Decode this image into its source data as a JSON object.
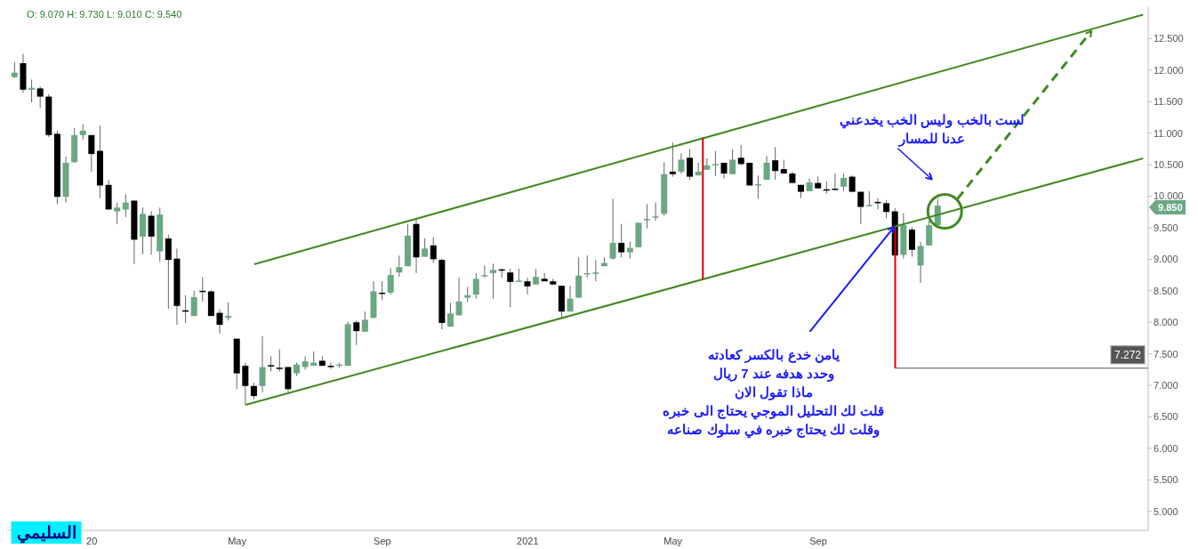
{
  "chart_data": {
    "type": "candlestick",
    "subtitle": "O: 9.070 H: 9.730 L: 9.010 C: 9.540",
    "categories": [
      null,
      null,
      null,
      null,
      null,
      null,
      null,
      null,
      null,
      "20",
      null,
      null,
      null,
      null,
      null,
      null,
      null,
      null,
      null,
      null,
      null,
      null,
      null,
      null,
      null,
      null,
      "May",
      null,
      null,
      null,
      null,
      null,
      null,
      null,
      null,
      null,
      null,
      null,
      null,
      null,
      null,
      null,
      null,
      "Sep",
      null,
      null,
      null,
      null,
      null,
      null,
      null,
      null,
      null,
      null,
      null,
      null,
      null,
      null,
      null,
      null,
      "2021",
      null,
      null,
      null,
      null,
      null,
      null,
      null,
      null,
      null,
      null,
      null,
      null,
      null,
      null,
      null,
      null,
      "May",
      null,
      null,
      null,
      null,
      null,
      null,
      null,
      null,
      null,
      null,
      null,
      null,
      null,
      null,
      null,
      null,
      "Sep",
      null,
      null,
      null,
      null,
      null,
      null,
      null,
      null,
      null,
      null,
      null,
      null,
      null,
      null,
      null,
      null,
      null,
      null,
      null,
      null,
      null,
      null,
      null,
      null,
      null,
      null,
      null,
      null,
      null,
      null,
      null,
      null,
      null,
      null,
      null,
      null,
      null,
      null
    ],
    "ohlc": [
      [
        11.89,
        12.13,
        11.875,
        11.96
      ],
      [
        12.11,
        12.26,
        11.64,
        11.69
      ],
      [
        11.69,
        11.85,
        11.49,
        11.72
      ],
      [
        11.71,
        11.74,
        11.4,
        11.58
      ],
      [
        11.58,
        11.62,
        10.94,
        10.97
      ],
      [
        10.99,
        11.04,
        9.875,
        9.99
      ],
      [
        9.99,
        10.625,
        9.9,
        10.53
      ],
      [
        10.54,
        11.08,
        10.53,
        10.97
      ],
      [
        10.97,
        11.14,
        10.9,
        11.04
      ],
      [
        10.97,
        10.97,
        10.39,
        10.67
      ],
      [
        10.72,
        11.125,
        9.97,
        10.17
      ],
      [
        10.18,
        10.26,
        9.78,
        9.79
      ],
      [
        9.76,
        9.9,
        9.56,
        9.82
      ],
      [
        9.79,
        10.03,
        9.67,
        9.9
      ],
      [
        9.93,
        9.93,
        8.92,
        9.31
      ],
      [
        9.36,
        9.82,
        9.08,
        9.72
      ],
      [
        9.69,
        9.76,
        9.07,
        9.36
      ],
      [
        9.125,
        9.82,
        8.96,
        9.71
      ],
      [
        9.33,
        9.39,
        8.21,
        8.99
      ],
      [
        9.01,
        9.17,
        7.96,
        8.26
      ],
      [
        8.19,
        8.43,
        7.99,
        8.18
      ],
      [
        8.1,
        8.5,
        8.1,
        8.4
      ],
      [
        8.5,
        8.72,
        8.33,
        8.49
      ],
      [
        8.49,
        8.51,
        8.1,
        8.1
      ],
      [
        8.15,
        8.21,
        7.82,
        7.96
      ],
      [
        8.07,
        8.32,
        8.03,
        8.1
      ],
      [
        7.74,
        7.74,
        6.94,
        7.19
      ],
      [
        7.31,
        7.36,
        6.69,
        6.99
      ],
      [
        6.99,
        7.04,
        6.78,
        6.83
      ],
      [
        6.99,
        7.78,
        6.89,
        7.29
      ],
      [
        7.32,
        7.46,
        7.22,
        7.31
      ],
      [
        7.28,
        7.57,
        7.22,
        7.27
      ],
      [
        7.29,
        7.29,
        6.9,
        6.94
      ],
      [
        7.19,
        7.36,
        7.15,
        7.33
      ],
      [
        7.29,
        7.46,
        7.25,
        7.38
      ],
      [
        7.31,
        7.54,
        7.31,
        7.36
      ],
      [
        7.39,
        7.46,
        7.31,
        7.31
      ],
      [
        7.31,
        7.36,
        7.26,
        7.3
      ],
      [
        7.31,
        7.36,
        7.28,
        7.33
      ],
      [
        7.31,
        8.01,
        7.31,
        7.97
      ],
      [
        8.0,
        8.03,
        7.64,
        7.86
      ],
      [
        7.85,
        8.17,
        7.85,
        8.04
      ],
      [
        8.07,
        8.65,
        8.07,
        8.49
      ],
      [
        8.47,
        8.65,
        8.35,
        8.45
      ],
      [
        8.47,
        8.86,
        8.44,
        8.75
      ],
      [
        8.79,
        9.06,
        8.72,
        8.875
      ],
      [
        8.89,
        9.56,
        8.89,
        9.375
      ],
      [
        9.56,
        9.64,
        8.78,
        9.03
      ],
      [
        9.04,
        9.33,
        9.04,
        9.17
      ],
      [
        9.22,
        9.35,
        8.94,
        9.0
      ],
      [
        8.99,
        9.01,
        7.89,
        7.99
      ],
      [
        7.93,
        8.31,
        7.93,
        8.14
      ],
      [
        8.11,
        8.71,
        8.11,
        8.33
      ],
      [
        8.39,
        8.56,
        8.32,
        8.43
      ],
      [
        8.44,
        8.78,
        8.375,
        8.69
      ],
      [
        8.73,
        8.9,
        8.71,
        8.75
      ],
      [
        8.78,
        8.93,
        8.375,
        8.83
      ],
      [
        8.84,
        8.85,
        8.71,
        8.82
      ],
      [
        8.79,
        8.85,
        8.24,
        8.64
      ],
      [
        8.64,
        8.85,
        8.64,
        8.66
      ],
      [
        8.65,
        8.71,
        8.44,
        8.57
      ],
      [
        8.6,
        8.85,
        8.6,
        8.72
      ],
      [
        8.69,
        8.78,
        8.65,
        8.65
      ],
      [
        8.65,
        8.69,
        8.6,
        8.6
      ],
      [
        8.58,
        8.58,
        8.07,
        8.17
      ],
      [
        8.17,
        8.58,
        8.17,
        8.375
      ],
      [
        8.39,
        9.03,
        8.39,
        8.74
      ],
      [
        8.77,
        9.06,
        8.71,
        8.78
      ],
      [
        8.77,
        8.99,
        8.65,
        8.79
      ],
      [
        8.89,
        9.03,
        8.89,
        8.94
      ],
      [
        9.01,
        9.96,
        8.99,
        9.26
      ],
      [
        9.26,
        9.56,
        9.03,
        9.11
      ],
      [
        9.11,
        9.28,
        9.01,
        9.18
      ],
      [
        9.19,
        9.58,
        9.19,
        9.58
      ],
      [
        9.63,
        9.875,
        9.49,
        9.64
      ],
      [
        9.67,
        9.9,
        9.61,
        9.68
      ],
      [
        9.72,
        10.54,
        9.69,
        10.35
      ],
      [
        10.39,
        10.85,
        10.31,
        10.35
      ],
      [
        10.39,
        10.68,
        10.36,
        10.58
      ],
      [
        10.61,
        10.75,
        10.26,
        10.31
      ],
      [
        10.33,
        10.53,
        10.33,
        10.39
      ],
      [
        10.42,
        10.6,
        10.42,
        10.49
      ],
      [
        10.5,
        10.72,
        10.32,
        10.51
      ],
      [
        10.53,
        10.53,
        10.28,
        10.36
      ],
      [
        10.35,
        10.74,
        10.35,
        10.58
      ],
      [
        10.61,
        10.81,
        10.49,
        10.51
      ],
      [
        10.53,
        10.53,
        10.17,
        10.17
      ],
      [
        10.18,
        10.33,
        9.96,
        10.19
      ],
      [
        10.26,
        10.64,
        10.26,
        10.53
      ],
      [
        10.57,
        10.78,
        10.26,
        10.4
      ],
      [
        10.43,
        10.58,
        10.36,
        10.36
      ],
      [
        10.36,
        10.39,
        10.21,
        10.21
      ],
      [
        10.18,
        10.18,
        9.97,
        10.07
      ],
      [
        10.08,
        10.28,
        10.08,
        10.22
      ],
      [
        10.21,
        10.31,
        10.12,
        10.125
      ],
      [
        10.11,
        10.24,
        10.04,
        10.1
      ],
      [
        10.12,
        10.36,
        10.11,
        10.11
      ],
      [
        10.15,
        10.36,
        10.08,
        10.29
      ],
      [
        10.31,
        10.33,
        10.07,
        10.07
      ],
      [
        10.07,
        10.07,
        9.56,
        9.83
      ],
      [
        9.85,
        10.08,
        9.85,
        9.86
      ],
      [
        9.91,
        9.97,
        9.79,
        9.9
      ],
      [
        9.89,
        9.94,
        9.65,
        9.75
      ],
      [
        9.76,
        9.81,
        9.06,
        9.06
      ],
      [
        9.07,
        9.73,
        9.01,
        9.54
      ],
      [
        9.47,
        9.51,
        9.04,
        9.15
      ],
      [
        8.9,
        9.28,
        8.625,
        9.21
      ],
      [
        9.22,
        9.61,
        9.22,
        9.54
      ],
      [
        9.54,
        9.96,
        9.54,
        9.85
      ],
      null,
      null,
      null,
      null,
      null,
      null,
      null,
      null,
      null,
      null,
      null,
      null,
      null,
      null,
      null,
      null,
      null,
      null,
      null,
      null,
      null,
      null,
      null,
      null
    ],
    "colors": [
      "#6aa882",
      "#000000",
      "#6aa882",
      "#000000",
      "#000000",
      "#000000",
      "#6aa882",
      "#6aa882",
      "#6aa882",
      "#000000",
      "#000000",
      "#000000",
      "#6aa882",
      "#6aa882",
      "#000000",
      "#6aa882",
      "#000000",
      "#6aa882",
      "#000000",
      "#000000",
      "#000000",
      "#6aa882",
      "#000000",
      "#000000",
      "#000000",
      "#6aa882",
      "#000000",
      "#000000",
      "#000000",
      "#6aa882",
      "#000000",
      "#000000",
      "#000000",
      "#6aa882",
      "#6aa882",
      "#6aa882",
      "#000000",
      "#000000",
      "#6aa882",
      "#6aa882",
      "#000000",
      "#6aa882",
      "#6aa882",
      "#000000",
      "#6aa882",
      "#6aa882",
      "#6aa882",
      "#000000",
      "#6aa882",
      "#000000",
      "#000000",
      "#6aa882",
      "#6aa882",
      "#6aa882",
      "#6aa882",
      "#6aa882",
      "#6aa882",
      "#000000",
      "#000000",
      "#6aa882",
      "#000000",
      "#6aa882",
      "#000000",
      "#000000",
      "#000000",
      "#6aa882",
      "#6aa882",
      "#6aa882",
      "#6aa882",
      "#6aa882",
      "#6aa882",
      "#000000",
      "#6aa882",
      "#6aa882",
      "#6aa882",
      "#6aa882",
      "#6aa882",
      "#000000",
      "#6aa882",
      "#000000",
      "#6aa882",
      "#6aa882",
      "#6aa882",
      "#000000",
      "#6aa882",
      "#000000",
      "#000000",
      "#6aa882",
      "#6aa882",
      "#000000",
      "#000000",
      "#000000",
      "#000000",
      "#6aa882",
      "#000000",
      "#000000",
      "#000000",
      "#6aa882",
      "#000000",
      "#000000",
      "#6aa882",
      "#000000",
      "#000000",
      "#000000",
      "#6aa882",
      "#000000",
      "#6aa882",
      "#6aa882",
      "#6aa882",
      null,
      null,
      null,
      null,
      null,
      null,
      null,
      null,
      null,
      null,
      null,
      null,
      null,
      null,
      null,
      null,
      null,
      null,
      null,
      null,
      null,
      null,
      null,
      null
    ],
    "series": [
      {
        "type": "line",
        "color": "#3f8a1f",
        "values": [
          null,
          null,
          null,
          null,
          null,
          null,
          null,
          null,
          null,
          null,
          null,
          null,
          null,
          null,
          null,
          null,
          null,
          null,
          null,
          null,
          null,
          null,
          null,
          null,
          null,
          null,
          null,
          null,
          8.92,
          null,
          null,
          null,
          null,
          null,
          null,
          null,
          null,
          null,
          null,
          null,
          null,
          null,
          null,
          null,
          null,
          null,
          null,
          null,
          null,
          null,
          null,
          null,
          null,
          null,
          null,
          null,
          null,
          null,
          null,
          null,
          null,
          null,
          null,
          null,
          null,
          null,
          null,
          null,
          null,
          null,
          null,
          null,
          null,
          null,
          null,
          null,
          null,
          null,
          null,
          null,
          null,
          null,
          null,
          null,
          null,
          null,
          null,
          null,
          null,
          null,
          null,
          null,
          null,
          null,
          null,
          null,
          null,
          null,
          null,
          null,
          null,
          null,
          null,
          null,
          null,
          null,
          null,
          null,
          null,
          null,
          null,
          null,
          null,
          null,
          null,
          null,
          null,
          null,
          null,
          null,
          null,
          null,
          null,
          null,
          null,
          null,
          null,
          null,
          null,
          null,
          null,
          null,
          12.88
        ]
      },
      {
        "type": "line",
        "color": "#3f8a1f",
        "values": [
          null,
          null,
          null,
          null,
          null,
          null,
          null,
          null,
          null,
          null,
          null,
          null,
          null,
          null,
          null,
          null,
          null,
          null,
          null,
          null,
          null,
          null,
          null,
          null,
          null,
          null,
          null,
          6.69,
          null,
          null,
          null,
          null,
          null,
          null,
          null,
          null,
          null,
          null,
          null,
          null,
          null,
          null,
          null,
          null,
          null,
          null,
          null,
          null,
          null,
          null,
          null,
          null,
          null,
          null,
          null,
          null,
          null,
          null,
          null,
          null,
          null,
          null,
          null,
          null,
          null,
          null,
          null,
          null,
          null,
          null,
          null,
          null,
          null,
          null,
          null,
          null,
          null,
          null,
          null,
          null,
          null,
          null,
          null,
          null,
          null,
          null,
          null,
          null,
          null,
          null,
          null,
          null,
          null,
          null,
          null,
          null,
          null,
          null,
          null,
          null,
          null,
          null,
          null,
          null,
          null,
          null,
          null,
          null,
          null,
          null,
          null,
          null,
          null,
          null,
          null,
          null,
          null,
          null,
          null,
          null,
          null,
          null,
          null,
          null,
          null,
          null,
          null,
          null,
          null,
          null,
          null,
          null,
          10.6
        ]
      }
    ],
    "ylim": [
      4.7,
      13.0
    ],
    "yticks": [
      {
        "value": 5,
        "label": "5.000"
      },
      {
        "value": 5.5,
        "label": "5.500"
      },
      {
        "value": 6,
        "label": "6.000"
      },
      {
        "value": 6.5,
        "label": "6.500"
      },
      {
        "value": 7,
        "label": "7.000"
      },
      {
        "value": 7.5,
        "label": "7.500"
      },
      {
        "value": 8,
        "label": "8.000"
      },
      {
        "value": 8.5,
        "label": "8.500"
      },
      {
        "value": 9,
        "label": "9.000"
      },
      {
        "value": 9.5,
        "label": "9.500"
      },
      {
        "value": 10,
        "label": "10.000"
      },
      {
        "value": 10.5,
        "label": "10.500"
      },
      {
        "value": 11,
        "label": "11.000"
      },
      {
        "value": 11.5,
        "label": "11.500"
      },
      {
        "value": 12,
        "label": "12.000"
      },
      {
        "value": 12.5,
        "label": "12.500"
      }
    ],
    "ref_lines": [
      {
        "axis": "y",
        "value": 7.272,
        "label": "7.272",
        "color": "#555555"
      }
    ],
    "annotations": [
      "لست بالخب وليس الخب يخدعني\nعدنا للمسار",
      {
        "text": "يامن خدع بالكسر كعادته\nوحدد هدفه عند 7 ريال\nماذا تقول الان\nقلت لك التحليل الموجي يحتاج الى خبره\nوقلت لك يحتاج خبره في سلوك صناعه"
      },
      "السليمي",
      "9.850"
    ]
  }
}
